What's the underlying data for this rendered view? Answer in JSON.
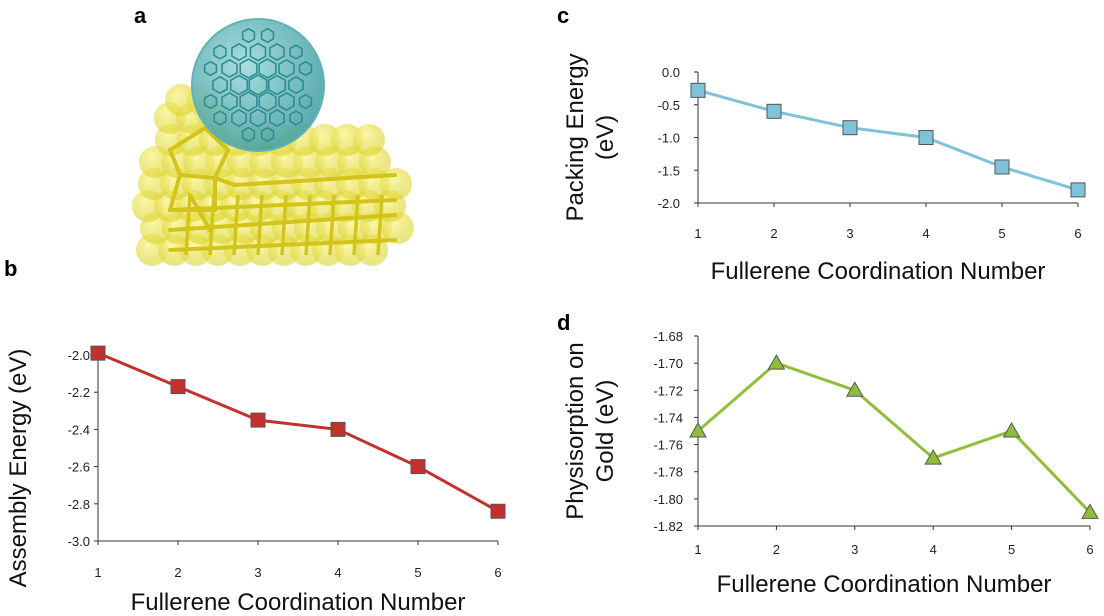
{
  "panels": {
    "a": {
      "letter": "a"
    },
    "b": {
      "letter": "b"
    },
    "c": {
      "letter": "c"
    },
    "d": {
      "letter": "d"
    }
  },
  "colors": {
    "fullerene": "#5fb3b6",
    "gold": "#e6e23a",
    "gold_bond": "#d2c41a",
    "series_b": "#c4302b",
    "series_c": "#7ec3d8",
    "series_d": "#8fbf3a"
  },
  "chart_data": [
    {
      "panel": "b",
      "type": "line",
      "marker": "square",
      "x": [
        1,
        2,
        3,
        4,
        5,
        6
      ],
      "series": [
        {
          "values": [
            -1.99,
            -2.17,
            -2.35,
            -2.4,
            -2.6,
            -2.84
          ]
        }
      ],
      "xlabel": "Fullerene Coordination Number",
      "ylabel": "Assembly Energy (eV)",
      "xlim": [
        1,
        6
      ],
      "ylim": [
        -3.0,
        -2.0
      ],
      "xticks": [
        "1",
        "2",
        "3",
        "4",
        "5",
        "6"
      ],
      "yticks": [
        "-2.0",
        "-2.2",
        "-2.4",
        "-2.6",
        "-2.8",
        "-3.0"
      ],
      "grid": false
    },
    {
      "panel": "c",
      "type": "line",
      "marker": "square",
      "x": [
        1,
        2,
        3,
        4,
        5,
        6
      ],
      "series": [
        {
          "values": [
            -0.28,
            -0.6,
            -0.85,
            -1.0,
            -1.45,
            -1.8
          ]
        }
      ],
      "xlabel": "Fullerene Coordination Number",
      "ylabel": "Packing Energy (eV)",
      "ylabel_lines": [
        "Packing Energy",
        "(eV)"
      ],
      "xlim": [
        1,
        6
      ],
      "ylim": [
        -2.0,
        0.0
      ],
      "xticks": [
        "1",
        "2",
        "3",
        "4",
        "5",
        "6"
      ],
      "yticks": [
        "0.0",
        "-0.5",
        "-1.0",
        "-1.5",
        "-2.0"
      ],
      "grid": false
    },
    {
      "panel": "d",
      "type": "line",
      "marker": "triangle",
      "x": [
        1,
        2,
        3,
        4,
        5,
        6
      ],
      "series": [
        {
          "values": [
            -1.75,
            -1.7,
            -1.72,
            -1.77,
            -1.75,
            -1.81
          ]
        }
      ],
      "xlabel": "Fullerene Coordination Number",
      "ylabel": "Physisorption on Gold (eV)",
      "ylabel_lines": [
        "Physisorption on",
        "Gold (eV)"
      ],
      "xlim": [
        1,
        6
      ],
      "ylim": [
        -1.82,
        -1.68
      ],
      "xticks": [
        "1",
        "2",
        "3",
        "4",
        "5",
        "6"
      ],
      "yticks": [
        "-1.68",
        "-1.70",
        "-1.72",
        "-1.74",
        "-1.76",
        "-1.78",
        "-1.80",
        "-1.82"
      ],
      "grid": false
    }
  ]
}
